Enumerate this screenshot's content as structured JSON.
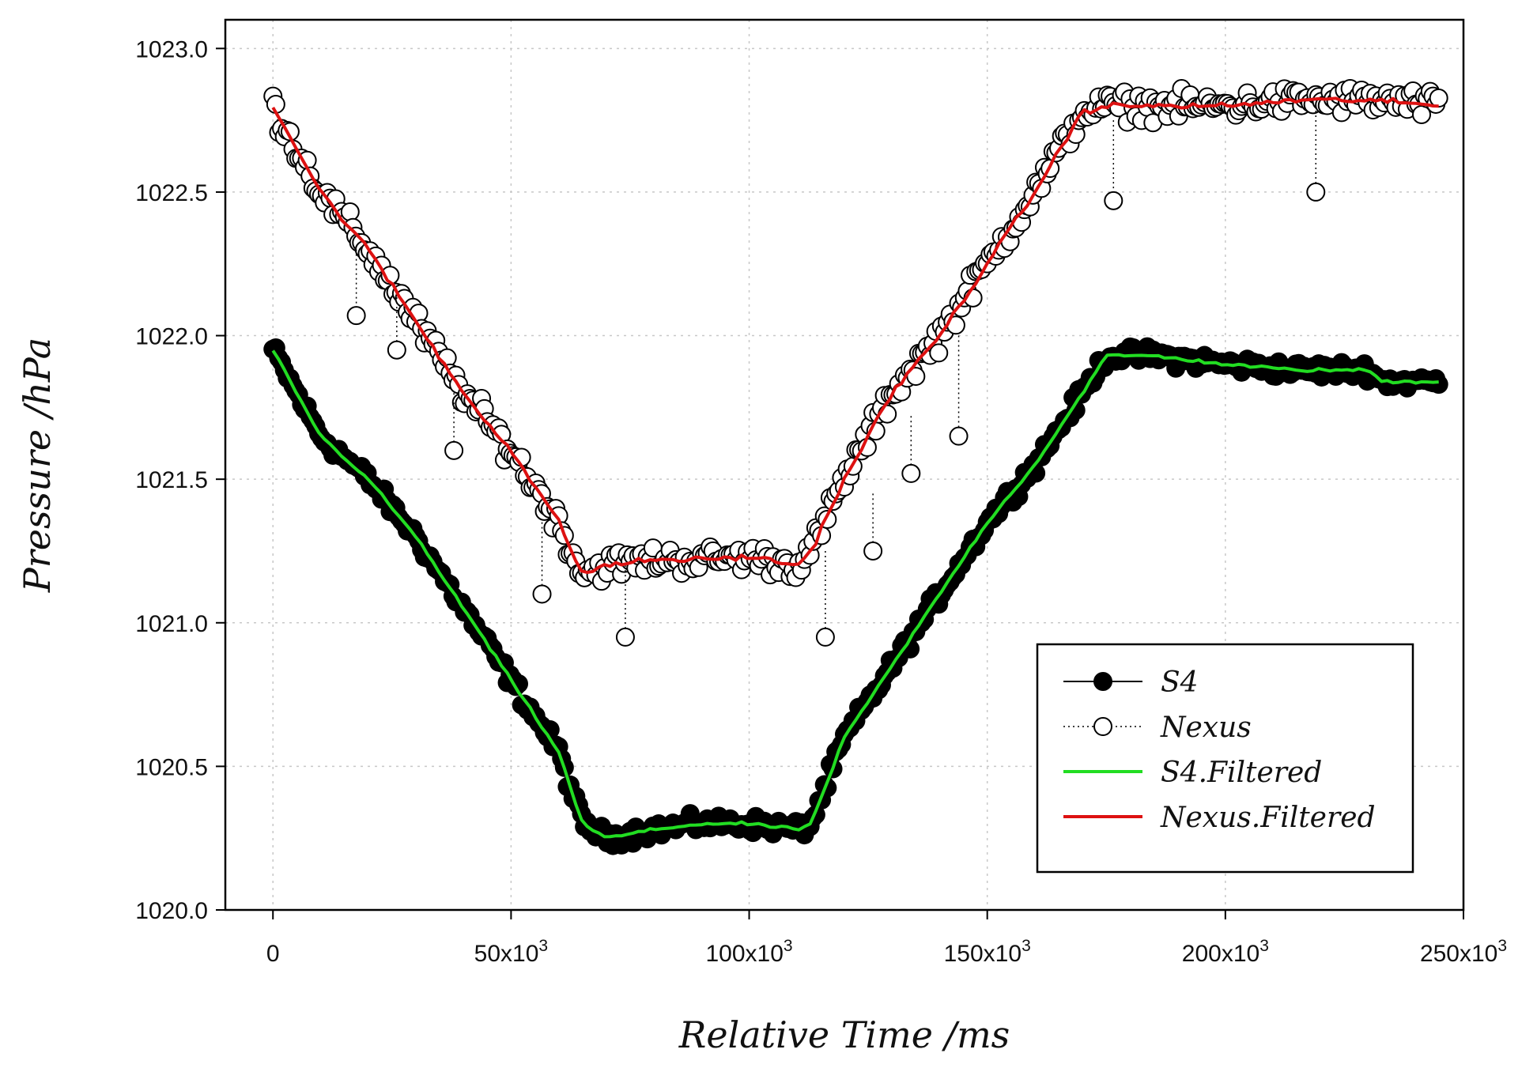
{
  "chart_data": {
    "type": "scatter",
    "xlabel": "Relative Time  /ms",
    "ylabel": "Pressure  /hPa",
    "xlim": [
      -10000,
      250000
    ],
    "ylim": [
      1020.0,
      1023.1
    ],
    "grid": true,
    "legend_position": "bottom-right",
    "x_ticks": [
      {
        "value": 0,
        "base": "0",
        "exp": ""
      },
      {
        "value": 50000,
        "base": "50x10",
        "exp": "3"
      },
      {
        "value": 100000,
        "base": "100x10",
        "exp": "3"
      },
      {
        "value": 150000,
        "base": "150x10",
        "exp": "3"
      },
      {
        "value": 200000,
        "base": "200x10",
        "exp": "3"
      },
      {
        "value": 250000,
        "base": "250x10",
        "exp": "3"
      }
    ],
    "y_ticks": [
      "1020.0",
      "1020.5",
      "1021.0",
      "1021.5",
      "1022.0",
      "1022.5",
      "1023.0"
    ],
    "series": [
      {
        "name": "S4",
        "style": "filled-circle-line",
        "color": "#000000",
        "x": [
          0,
          10000,
          20000,
          30000,
          40000,
          50000,
          60000,
          65000,
          70000,
          80000,
          90000,
          100000,
          110000,
          113000,
          120000,
          130000,
          140000,
          150000,
          160000,
          170000,
          175000,
          185000,
          200000,
          215000,
          230000,
          233000,
          245000
        ],
        "y": [
          1021.95,
          1021.65,
          1021.5,
          1021.3,
          1021.05,
          1020.8,
          1020.55,
          1020.3,
          1020.25,
          1020.28,
          1020.3,
          1020.3,
          1020.28,
          1020.3,
          1020.6,
          1020.85,
          1021.1,
          1021.35,
          1021.55,
          1021.8,
          1021.93,
          1021.93,
          1021.9,
          1021.88,
          1021.88,
          1021.84,
          1021.84
        ]
      },
      {
        "name": "Nexus",
        "style": "open-circle-dotted",
        "color": "#000000",
        "x": [
          0,
          10000,
          20000,
          30000,
          40000,
          50000,
          60000,
          65000,
          70000,
          80000,
          90000,
          100000,
          110000,
          113000,
          120000,
          130000,
          140000,
          150000,
          160000,
          170000,
          175000,
          185000,
          200000,
          215000,
          230000,
          245000
        ],
        "y": [
          1022.8,
          1022.5,
          1022.3,
          1022.05,
          1021.8,
          1021.6,
          1021.35,
          1021.17,
          1021.2,
          1021.22,
          1021.22,
          1021.23,
          1021.2,
          1021.25,
          1021.5,
          1021.8,
          1022.0,
          1022.25,
          1022.5,
          1022.78,
          1022.8,
          1022.8,
          1022.8,
          1022.82,
          1022.82,
          1022.8
        ]
      },
      {
        "name": "S4.Filtered",
        "style": "line",
        "color": "#22dd22",
        "x": [
          0,
          10000,
          20000,
          30000,
          40000,
          50000,
          60000,
          65000,
          70000,
          80000,
          90000,
          100000,
          110000,
          113000,
          120000,
          130000,
          140000,
          150000,
          160000,
          170000,
          175000,
          185000,
          200000,
          215000,
          230000,
          233000,
          245000
        ],
        "y": [
          1021.95,
          1021.65,
          1021.5,
          1021.3,
          1021.05,
          1020.8,
          1020.55,
          1020.3,
          1020.25,
          1020.28,
          1020.3,
          1020.3,
          1020.28,
          1020.3,
          1020.6,
          1020.85,
          1021.1,
          1021.35,
          1021.55,
          1021.8,
          1021.93,
          1021.93,
          1021.9,
          1021.88,
          1021.88,
          1021.84,
          1021.84
        ]
      },
      {
        "name": "Nexus.Filtered",
        "style": "line",
        "color": "#dd1111",
        "x": [
          0,
          10000,
          20000,
          30000,
          40000,
          50000,
          60000,
          65000,
          70000,
          80000,
          90000,
          100000,
          110000,
          113000,
          120000,
          130000,
          140000,
          150000,
          160000,
          170000,
          175000,
          185000,
          200000,
          215000,
          230000,
          245000
        ],
        "y": [
          1022.8,
          1022.5,
          1022.3,
          1022.05,
          1021.8,
          1021.6,
          1021.35,
          1021.17,
          1021.2,
          1021.22,
          1021.22,
          1021.23,
          1021.2,
          1021.25,
          1021.5,
          1021.8,
          1022.0,
          1022.25,
          1022.5,
          1022.78,
          1022.8,
          1022.8,
          1022.8,
          1022.82,
          1022.82,
          1022.8
        ]
      }
    ],
    "outliers": {
      "series": "Nexus",
      "points": [
        {
          "x": 17500,
          "y": 1022.07,
          "base": 1022.3
        },
        {
          "x": 26000,
          "y": 1021.95,
          "base": 1022.15
        },
        {
          "x": 38000,
          "y": 1021.6,
          "base": 1021.8
        },
        {
          "x": 56500,
          "y": 1021.1,
          "base": 1021.35
        },
        {
          "x": 74000,
          "y": 1020.95,
          "base": 1021.2
        },
        {
          "x": 116000,
          "y": 1020.95,
          "base": 1021.25
        },
        {
          "x": 126000,
          "y": 1021.25,
          "base": 1021.45
        },
        {
          "x": 134000,
          "y": 1021.52,
          "base": 1021.72
        },
        {
          "x": 144000,
          "y": 1021.65,
          "base": 1022.0
        },
        {
          "x": 176500,
          "y": 1022.47,
          "base": 1022.75
        },
        {
          "x": 219000,
          "y": 1022.5,
          "base": 1022.8
        }
      ]
    }
  }
}
